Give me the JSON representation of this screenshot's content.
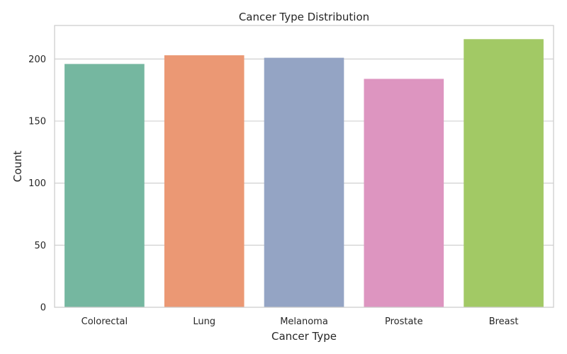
{
  "chart_data": {
    "type": "bar",
    "title": "Cancer Type Distribution",
    "xlabel": "Cancer Type",
    "ylabel": "Count",
    "categories": [
      "Colorectal",
      "Lung",
      "Melanoma",
      "Prostate",
      "Breast"
    ],
    "values": [
      196,
      203,
      201,
      184,
      216
    ],
    "colors": [
      "#75b7a0",
      "#eb9874",
      "#94a4c4",
      "#dd95c0",
      "#a2c965"
    ],
    "ylim": [
      0,
      227
    ],
    "yticks": [
      0,
      50,
      100,
      150,
      200
    ],
    "grid": "horizontal",
    "legend": "none"
  }
}
